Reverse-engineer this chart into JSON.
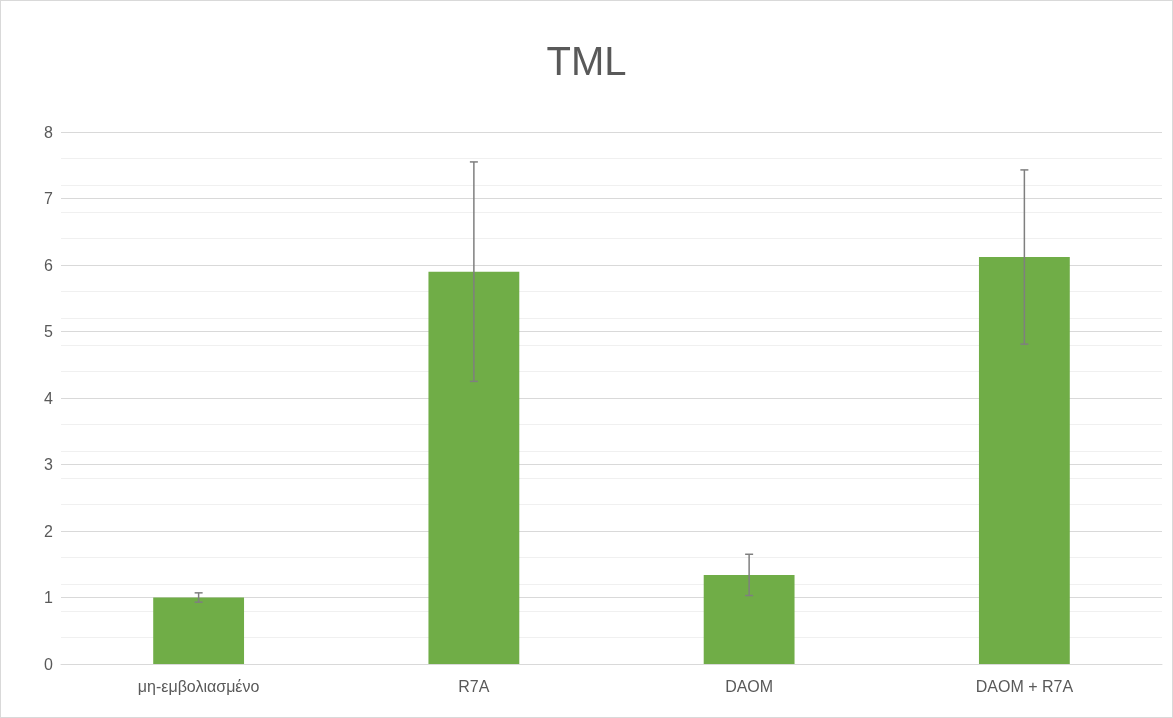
{
  "chart_data": {
    "type": "bar",
    "title": "TML",
    "categories": [
      "μη-εμβολιασμένο",
      "R7A",
      "DAOM",
      "DAOM + R7A"
    ],
    "values": [
      1.0,
      5.9,
      1.34,
      6.12
    ],
    "errors": [
      0.07,
      1.65,
      0.31,
      1.31
    ],
    "color": "#70ad47",
    "ylim": [
      0,
      8
    ],
    "yticks": [
      0,
      1,
      2,
      3,
      4,
      5,
      6,
      7,
      8
    ],
    "grid": true
  }
}
